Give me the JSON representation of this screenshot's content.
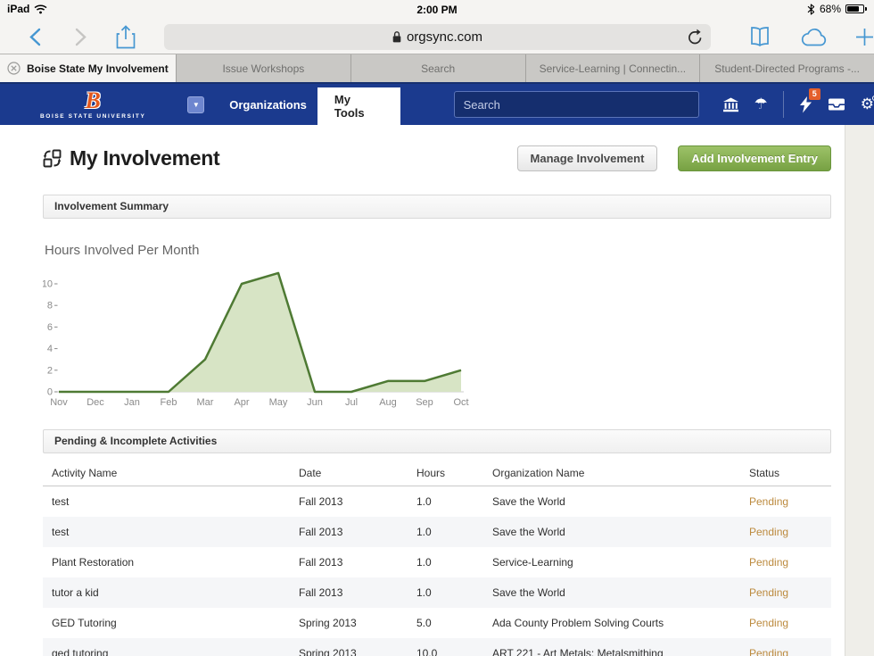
{
  "status_bar": {
    "device": "iPad",
    "time": "2:00 PM",
    "battery_percent": "68%"
  },
  "browser": {
    "url": "orgsync.com",
    "tabs": [
      {
        "label": "Boise State My Involvement",
        "active": true
      },
      {
        "label": "Issue Workshops",
        "active": false
      },
      {
        "label": "Search",
        "active": false
      },
      {
        "label": "Service-Learning | Connectin...",
        "active": false
      },
      {
        "label": "Student-Directed Programs -...",
        "active": false
      }
    ]
  },
  "navbar": {
    "logo_letter": "B",
    "logo_subtext": "BOISE STATE UNIVERSITY",
    "items": [
      {
        "label": "Organizations",
        "active": false
      },
      {
        "label": "My Tools",
        "active": true
      }
    ],
    "search_placeholder": "Search",
    "notification_count": "5",
    "background_color": "#1b3a8e"
  },
  "page": {
    "title": "My Involvement",
    "buttons": {
      "manage": "Manage Involvement",
      "add": "Add Involvement Entry"
    },
    "summary_header": "Involvement Summary",
    "chart_title": "Hours Involved Per Month",
    "pending_header": "Pending & Incomplete Activities",
    "add_button_color": "#77a143",
    "pending_status_color": "#bc8a3e"
  },
  "chart_data": {
    "type": "area",
    "title": "Hours Involved Per Month",
    "categories": [
      "Nov",
      "Dec",
      "Jan",
      "Feb",
      "Mar",
      "Apr",
      "May",
      "Jun",
      "Jul",
      "Aug",
      "Sep",
      "Oct"
    ],
    "values": [
      0,
      0,
      0,
      0,
      3,
      10,
      11,
      0,
      0,
      1,
      1,
      2
    ],
    "xlabel": "",
    "ylabel": "",
    "ylim": [
      0,
      11.5
    ],
    "yticks": [
      0,
      2,
      4,
      6,
      8,
      10
    ],
    "grid": false,
    "legend": false,
    "line_color": "#4e7a33",
    "fill_color": "#d7e4c5",
    "axis_color": "#cccccc",
    "tick_text_color": "#8a8a8a"
  },
  "table": {
    "columns": [
      "Activity Name",
      "Date",
      "Hours",
      "Organization Name",
      "Status"
    ],
    "rows": [
      {
        "activity": "test",
        "date": "Fall 2013",
        "hours": "1.0",
        "organization": "Save the World",
        "status": "Pending"
      },
      {
        "activity": "test",
        "date": "Fall 2013",
        "hours": "1.0",
        "organization": "Save the World",
        "status": "Pending"
      },
      {
        "activity": "Plant Restoration",
        "date": "Fall 2013",
        "hours": "1.0",
        "organization": "Service-Learning",
        "status": "Pending"
      },
      {
        "activity": "tutor a kid",
        "date": "Fall 2013",
        "hours": "1.0",
        "organization": "Save the World",
        "status": "Pending"
      },
      {
        "activity": "GED Tutoring",
        "date": "Spring 2013",
        "hours": "5.0",
        "organization": "Ada County Problem Solving Courts",
        "status": "Pending"
      },
      {
        "activity": "ged tutoring",
        "date": "Spring 2013",
        "hours": "10.0",
        "organization": "ART 221 - Art Metals: Metalsmithing",
        "status": "Pending"
      }
    ]
  }
}
